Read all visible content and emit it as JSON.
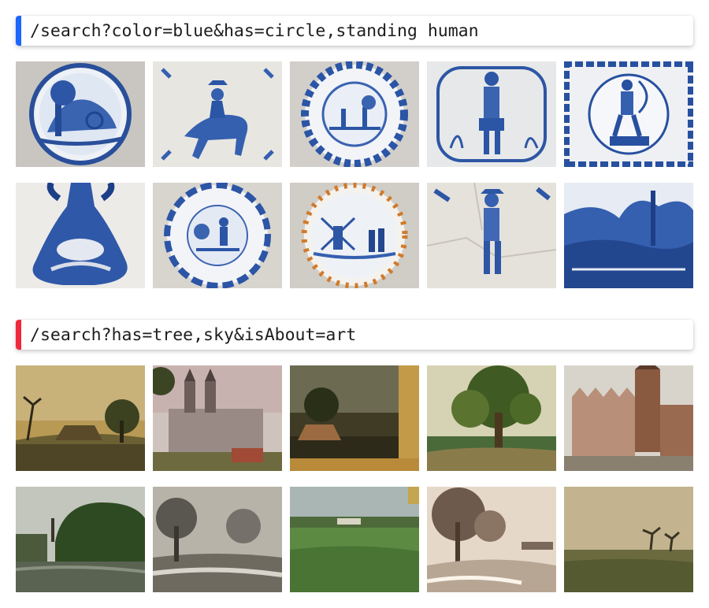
{
  "queries": [
    {
      "text": "/search?color=blue&has=circle,standing human",
      "accent": "#1a66ff",
      "results": [
        {
          "icon": "delft-plate-carriage-image"
        },
        {
          "icon": "delft-tile-horse-rider-image"
        },
        {
          "icon": "delft-plate-figures-image"
        },
        {
          "icon": "delft-tile-soldier-image"
        },
        {
          "icon": "delft-tile-archer-image"
        },
        {
          "icon": "delft-figurine-vase-image"
        },
        {
          "icon": "delft-plate-figure-image"
        },
        {
          "icon": "delft-plate-windmill-image"
        },
        {
          "icon": "delft-tile-cracked-soldier-image"
        },
        {
          "icon": "delft-plate-landscape-image"
        }
      ]
    },
    {
      "text": "/search?has=tree,sky&isAbout=art",
      "accent": "#f0283c",
      "results": [
        {
          "icon": "painting-farmhouse-image"
        },
        {
          "icon": "painting-cathedral-image"
        },
        {
          "icon": "painting-framed-cottage-image"
        },
        {
          "icon": "painting-oak-tree-image"
        },
        {
          "icon": "painting-town-tower-image"
        },
        {
          "icon": "painting-river-trees-image"
        },
        {
          "icon": "drawing-willow-landscape-image"
        },
        {
          "icon": "painting-green-field-image"
        },
        {
          "icon": "etching-winter-trees-image"
        },
        {
          "icon": "painting-windswept-trees-image"
        }
      ]
    }
  ]
}
